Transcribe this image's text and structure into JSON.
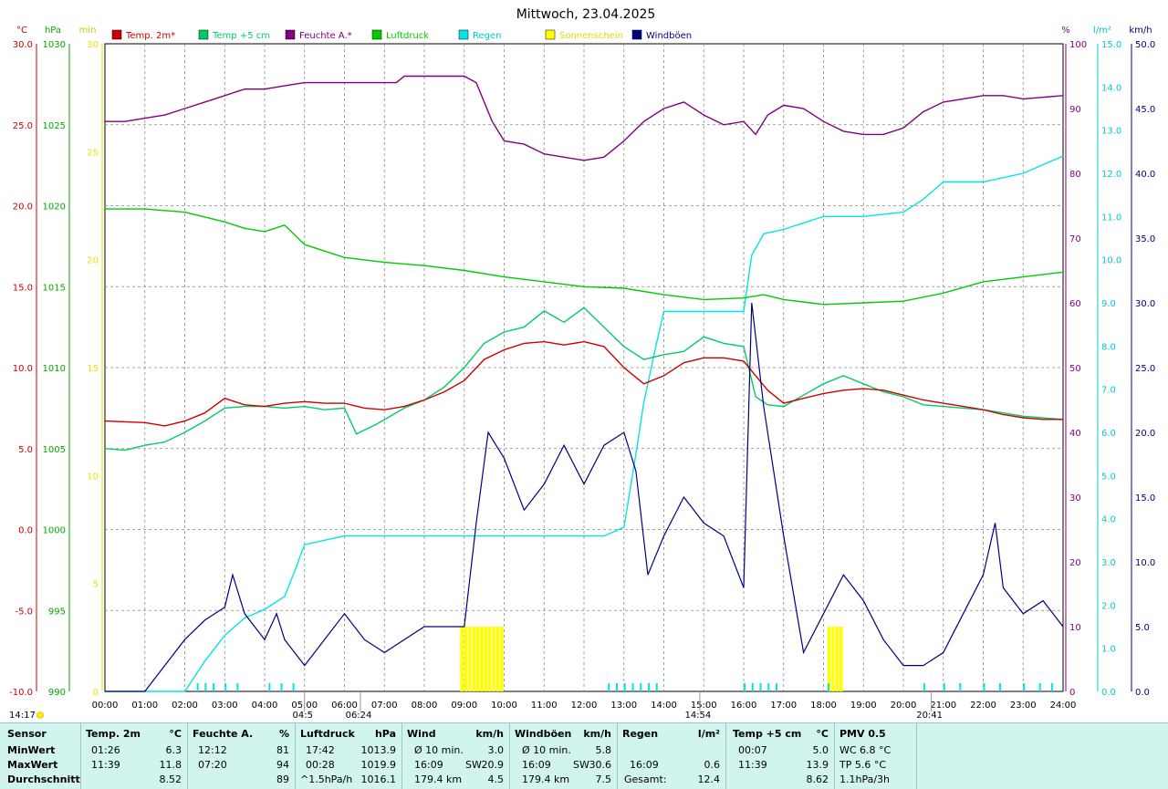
{
  "title": "Mittwoch, 23.04.2025",
  "axes_units": {
    "temp": "°C",
    "pressure": "hPa",
    "sun_min": "min",
    "humidity": "%",
    "rain": "l/m²",
    "wind": "km/h"
  },
  "legend": [
    {
      "label": "Temp. 2m*",
      "color": "#cc0000"
    },
    {
      "label": "Temp +5 cm",
      "color": "#00cc66"
    },
    {
      "label": "Feuchte A.*",
      "color": "#800080"
    },
    {
      "label": "Luftdruck",
      "color": "#00cc00"
    },
    {
      "label": "Regen",
      "color": "#00e5e5"
    },
    {
      "label": "Sonnenschein",
      "color": "#ffff00"
    },
    {
      "label": "Windböen",
      "color": "#000080"
    }
  ],
  "chart_data": {
    "type": "line",
    "title": "Mittwoch, 23.04.2025",
    "x_ticks": [
      "00:00",
      "01:00",
      "02:00",
      "03:00",
      "04:00",
      "05:00",
      "06:00",
      "07:00",
      "08:00",
      "09:00",
      "10:00",
      "11:00",
      "12:00",
      "13:00",
      "14:00",
      "15:00",
      "16:00",
      "17:00",
      "18:00",
      "19:00",
      "20:00",
      "21:00",
      "22:00",
      "23:00",
      "24:00"
    ],
    "axes": {
      "temp": {
        "ticks": [
          "30.0",
          "25.0",
          "20.0",
          "15.0",
          "10.0",
          "5.0",
          "0.0",
          "-5.0",
          "-10.0"
        ],
        "range": [
          -10,
          30
        ],
        "color": "#cc0000"
      },
      "pressure": {
        "ticks": [
          "1030",
          "1025",
          "1020",
          "1015",
          "1010",
          "1005",
          "1000",
          "995",
          "990"
        ],
        "range": [
          990,
          1030
        ],
        "color": "#00aa00"
      },
      "sun_min": {
        "ticks": [
          "30",
          "25",
          "20",
          "15",
          "10",
          "5",
          "0"
        ],
        "range": [
          0,
          30
        ],
        "color": "#e6e600"
      },
      "humidity": {
        "ticks": [
          "100",
          "90",
          "80",
          "70",
          "60",
          "50",
          "40",
          "30",
          "20",
          "10",
          "0"
        ],
        "range": [
          0,
          100
        ],
        "color": "#800080"
      },
      "rain": {
        "ticks": [
          "15.0",
          "14.0",
          "13.0",
          "12.0",
          "11.0",
          "10.0",
          "9.0",
          "8.0",
          "7.0",
          "6.0",
          "5.0",
          "4.0",
          "3.0",
          "2.0",
          "1.0",
          "0.0"
        ],
        "range": [
          0,
          15
        ],
        "color": "#00cccc"
      },
      "wind": {
        "ticks": [
          "50.0",
          "45.0",
          "40.0",
          "35.0",
          "30.0",
          "25.0",
          "20.0",
          "15.0",
          "10.0",
          "5.0",
          "0.0"
        ],
        "range": [
          0,
          50
        ],
        "color": "#000080"
      }
    },
    "series": [
      {
        "name": "Temp. 2m*",
        "axis": "temp",
        "color": "#cc0000",
        "x": [
          0,
          1,
          1.5,
          2,
          2.5,
          3,
          3.5,
          4,
          4.5,
          5,
          5.5,
          6,
          6.5,
          7,
          7.5,
          8,
          8.5,
          9,
          9.5,
          10,
          10.5,
          11,
          11.5,
          12,
          12.5,
          13,
          13.5,
          14,
          14.5,
          15,
          15.5,
          16,
          16.3,
          16.6,
          17,
          17.5,
          18,
          18.5,
          19,
          19.5,
          20,
          20.5,
          21,
          21.5,
          22,
          22.5,
          23,
          23.5,
          24
        ],
        "y": [
          6.7,
          6.6,
          6.4,
          6.7,
          7.2,
          8.1,
          7.7,
          7.6,
          7.8,
          7.9,
          7.8,
          7.8,
          7.5,
          7.4,
          7.6,
          8.0,
          8.5,
          9.2,
          10.5,
          11.1,
          11.5,
          11.6,
          11.4,
          11.6,
          11.3,
          10.0,
          9.0,
          9.5,
          10.3,
          10.6,
          10.6,
          10.4,
          9.5,
          8.6,
          7.8,
          8.1,
          8.4,
          8.6,
          8.7,
          8.6,
          8.3,
          8.0,
          7.8,
          7.6,
          7.4,
          7.1,
          6.9,
          6.8,
          6.8
        ]
      },
      {
        "name": "Temp +5 cm",
        "axis": "temp",
        "color": "#00cc66",
        "x": [
          0,
          0.5,
          1,
          1.5,
          2,
          2.5,
          3,
          3.5,
          4,
          4.5,
          5,
          5.5,
          6,
          6.3,
          6.8,
          7.5,
          8,
          8.5,
          9,
          9.5,
          10,
          10.5,
          11,
          11.5,
          12,
          12.5,
          13,
          13.5,
          14,
          14.5,
          15,
          15.5,
          16,
          16.3,
          16.6,
          17,
          17.5,
          18,
          18.5,
          19,
          19.5,
          20,
          20.5,
          21,
          21.5,
          22,
          22.5,
          23,
          24
        ],
        "y": [
          5.0,
          4.9,
          5.2,
          5.4,
          6.0,
          6.7,
          7.5,
          7.6,
          7.6,
          7.5,
          7.6,
          7.4,
          7.5,
          5.9,
          6.5,
          7.5,
          8.0,
          8.8,
          10.0,
          11.5,
          12.2,
          12.5,
          13.5,
          12.8,
          13.7,
          12.5,
          11.3,
          10.5,
          10.8,
          11.0,
          11.9,
          11.5,
          11.3,
          8.2,
          7.7,
          7.6,
          8.3,
          9.0,
          9.5,
          9.0,
          8.5,
          8.2,
          7.7,
          7.6,
          7.5,
          7.4,
          7.2,
          7.0,
          6.8
        ]
      },
      {
        "name": "Feuchte A.*",
        "axis": "humidity",
        "color": "#800080",
        "x": [
          0,
          0.5,
          1,
          1.5,
          2,
          2.5,
          3,
          3.5,
          4,
          4.5,
          5,
          5.5,
          6,
          6.5,
          7,
          7.3,
          7.5,
          8,
          8.5,
          9,
          9.3,
          9.7,
          10,
          10.5,
          11,
          11.5,
          12,
          12.5,
          13,
          13.5,
          14,
          14.5,
          15,
          15.5,
          16,
          16.3,
          16.6,
          17,
          17.5,
          18,
          18.5,
          19,
          19.5,
          20,
          20.5,
          21,
          21.5,
          22,
          22.5,
          23,
          24
        ],
        "y": [
          88,
          88,
          88.5,
          89,
          90,
          91,
          92,
          93,
          93,
          93.5,
          94,
          94,
          94,
          94,
          94,
          94,
          95,
          95,
          95,
          95,
          94,
          88,
          85,
          84.5,
          83,
          82.5,
          82,
          82.5,
          85,
          88,
          90,
          91,
          89,
          87.5,
          88,
          86,
          89,
          90.5,
          90,
          88,
          86.5,
          86,
          86,
          87,
          89.5,
          91,
          91.5,
          92,
          92,
          91.5,
          92
        ]
      },
      {
        "name": "Luftdruck",
        "axis": "pressure",
        "color": "#00cc00",
        "x": [
          0,
          1,
          2,
          3,
          3.5,
          4,
          4.5,
          5,
          5.5,
          6,
          7,
          8,
          9,
          10,
          11,
          12,
          13,
          14,
          15,
          16,
          16.5,
          17,
          18,
          19,
          20,
          21,
          22,
          23,
          24
        ],
        "y": [
          1019.8,
          1019.8,
          1019.6,
          1019.0,
          1018.6,
          1018.4,
          1018.8,
          1017.6,
          1017.2,
          1016.8,
          1016.5,
          1016.3,
          1016.0,
          1015.6,
          1015.3,
          1015.0,
          1014.9,
          1014.5,
          1014.2,
          1014.3,
          1014.5,
          1014.2,
          1013.9,
          1014.0,
          1014.1,
          1014.6,
          1015.3,
          1015.6,
          1015.9
        ]
      },
      {
        "name": "Regen",
        "axis": "rain",
        "color": "#00e5e5",
        "x": [
          0,
          2,
          2.5,
          3,
          3.5,
          4,
          4.5,
          4.8,
          5,
          6,
          6.5,
          7,
          8,
          9,
          10,
          11,
          12,
          12.5,
          13,
          13.3,
          13.5,
          13.8,
          14,
          15,
          16,
          16.2,
          16.5,
          17,
          18,
          19,
          20,
          20.5,
          21,
          21.5,
          22,
          23,
          23.5,
          24
        ],
        "y": [
          0,
          0,
          0.7,
          1.3,
          1.7,
          1.9,
          2.2,
          2.9,
          3.4,
          3.6,
          3.6,
          3.6,
          3.6,
          3.6,
          3.6,
          3.6,
          3.6,
          3.6,
          3.8,
          5.5,
          6.7,
          8.0,
          8.8,
          8.8,
          8.8,
          10.1,
          10.6,
          10.7,
          11.0,
          11.0,
          11.1,
          11.4,
          11.8,
          11.8,
          11.8,
          12.0,
          12.2,
          12.4
        ]
      },
      {
        "name": "Windböen",
        "axis": "wind",
        "color": "#000080",
        "x": [
          0,
          1,
          1.5,
          2,
          2.5,
          3,
          3.2,
          3.5,
          4,
          4.3,
          4.5,
          5,
          5.5,
          6,
          6.5,
          7,
          7.5,
          8,
          8.5,
          9,
          9.3,
          9.6,
          10,
          10.5,
          11,
          11.5,
          12,
          12.5,
          13,
          13.3,
          13.6,
          14,
          14.5,
          15,
          15.5,
          16,
          16.2,
          16.5,
          17,
          17.5,
          18,
          18.5,
          19,
          19.5,
          20,
          20.5,
          21,
          21.5,
          22,
          22.3,
          22.5,
          23,
          23.5,
          24
        ],
        "y": [
          0,
          0,
          2,
          4,
          5.5,
          6.5,
          9,
          6,
          4,
          6,
          4,
          2,
          4,
          6,
          4,
          3,
          4,
          5,
          5,
          5,
          13,
          20,
          18,
          14,
          16,
          19,
          16,
          19,
          20,
          17,
          9,
          12,
          15,
          13,
          12,
          8,
          30,
          22,
          12,
          3,
          6,
          9,
          7,
          4,
          2,
          2,
          3,
          6,
          9,
          13,
          8,
          6,
          7,
          5
        ]
      }
    ],
    "sunshine": [
      {
        "from": 8.9,
        "to": 9.95,
        "minutes": 3
      },
      {
        "from": 18.1,
        "to": 18.45,
        "minutes": 3
      }
    ],
    "rain_ticks": [
      2.3,
      2.5,
      2.7,
      3.0,
      3.3,
      4.1,
      4.4,
      4.7,
      12.6,
      12.8,
      13.0,
      13.2,
      13.4,
      13.6,
      13.8,
      16.0,
      16.2,
      16.4,
      16.6,
      16.8,
      18.1,
      20.5,
      21.0,
      21.4,
      22.0,
      22.4,
      23.0,
      23.4,
      23.7
    ],
    "sun_markers": [
      {
        "label": "14:17",
        "pos": "left"
      },
      {
        "label": "04:5",
        "at": 5.0
      },
      {
        "label": "06:24",
        "at": 6.4
      },
      {
        "label": "14:54",
        "at": 14.9
      },
      {
        "label": "20:41",
        "at": 20.7
      }
    ]
  },
  "stats": {
    "sensor": {
      "title": "Sensor",
      "rows": [
        "MinWert",
        "MaxWert",
        "Durchschnitt"
      ]
    },
    "temp2m": {
      "title": "Temp. 2m",
      "unit": "°C",
      "min_time": "01:26",
      "min": "6.3",
      "max_time": "11:39",
      "max": "11.8",
      "avg": "8.52"
    },
    "humidity": {
      "title": "Feuchte A.",
      "unit": "%",
      "min_time": "12:12",
      "min": "81",
      "max_time": "07:20",
      "max": "94",
      "avg": "89"
    },
    "pressure": {
      "title": "Luftdruck",
      "unit": "hPa",
      "min_time": "17:42",
      "min": "1013.9",
      "max_time": "00:28",
      "max": "1019.9",
      "trend": "^1.5hPa/h",
      "avg": "1016.1"
    },
    "wind": {
      "title": "Wind",
      "unit": "km/h",
      "r1_label": "Ø 10 min.",
      "r1_val": "3.0",
      "r2_time": "16:09",
      "r2_dir": "SW",
      "r2_val": "20.9",
      "r3_dist": "179.4 km",
      "r3_val": "4.5"
    },
    "gusts": {
      "title": "Windböen",
      "unit": "km/h",
      "r1_label": "Ø 10 min.",
      "r1_val": "5.8",
      "r2_time": "16:09",
      "r2_dir": "SW",
      "r2_val": "30.6",
      "r3_dist": "179.4 km",
      "r3_val": "7.5"
    },
    "rain": {
      "title": "Regen",
      "unit": "l/m²",
      "max_time": "16:09",
      "max": "0.6",
      "total_label": "Gesamt:",
      "total": "12.4"
    },
    "temp5cm": {
      "title": "Temp +5 cm",
      "unit": "°C",
      "min_time": "00:07",
      "min": "5.0",
      "max_time": "11:39",
      "max": "13.9",
      "avg": "8.62"
    },
    "pmv": {
      "title": "PMV 0.5",
      "wc": "WC 6.8 °C",
      "tp": "TP 5.6 °C",
      "trend": "1.1hPa/3h"
    }
  }
}
